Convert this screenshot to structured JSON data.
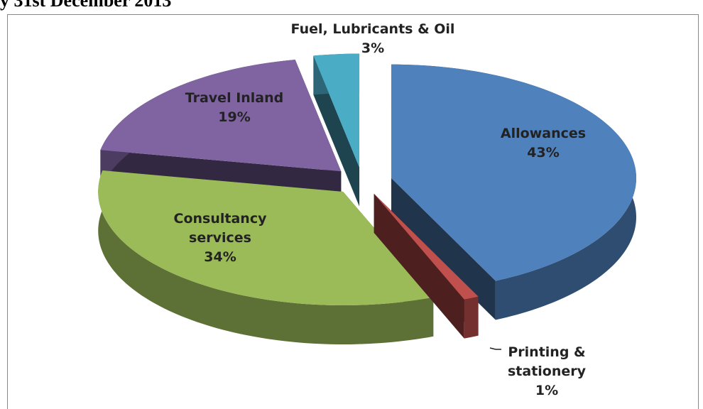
{
  "chart_data": {
    "type": "pie",
    "title": "y 31st December 2013",
    "categories": [
      "Allowances",
      "Printing & stationery",
      "Consultancy services",
      "Travel Inland",
      "Fuel, Lubricants & Oil"
    ],
    "values": [
      43,
      1,
      34,
      19,
      3
    ],
    "value_labels": [
      "43%",
      "1%",
      "34%",
      "19%",
      "3%"
    ],
    "colors": [
      "#4f81bd",
      "#c0504d",
      "#9bbb59",
      "#8064a2",
      "#4bacc6"
    ]
  }
}
